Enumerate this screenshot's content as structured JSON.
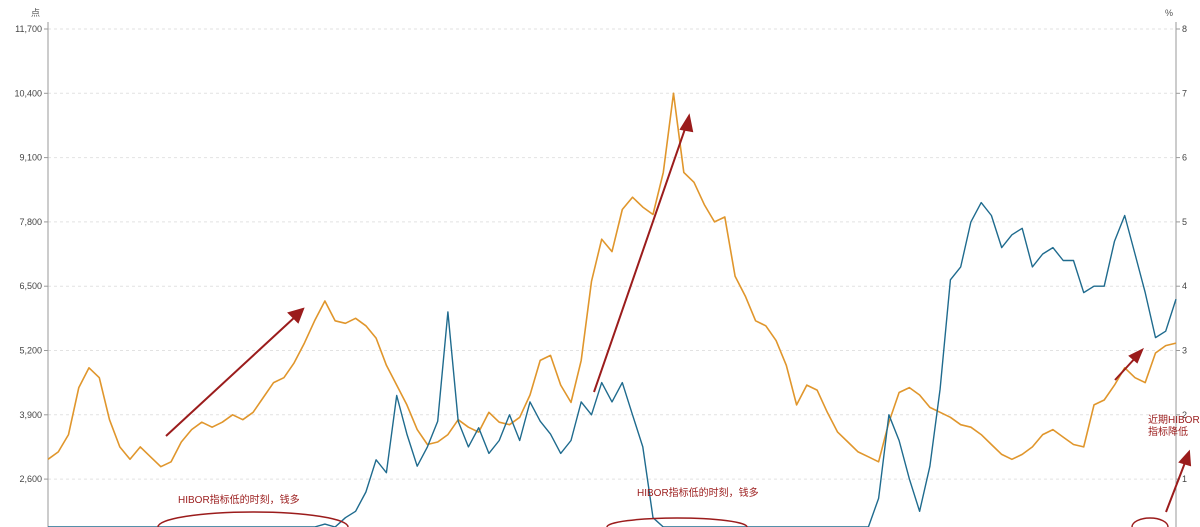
{
  "chart_data": {
    "type": "line",
    "left_axis": {
      "unit": "点",
      "ylim": [
        1300,
        11700
      ],
      "ticks": [
        11700,
        10400,
        9100,
        7800,
        6500,
        5200,
        3900,
        2600
      ],
      "tick_labels": [
        "11,700",
        "10,400",
        "9,100",
        "7,800",
        "6,500",
        "5,200",
        "3,900",
        "2,600"
      ]
    },
    "right_axis": {
      "unit": "%",
      "ylim": [
        -1,
        8
      ],
      "ticks": [
        8,
        7,
        6,
        5,
        4,
        3,
        2,
        1
      ],
      "tick_labels": [
        "8",
        "7",
        "6",
        "5",
        "4",
        "3",
        "2",
        "1"
      ]
    },
    "grid": true,
    "series": [
      {
        "color": "#e0962c",
        "axis": "left",
        "values": [
          3000,
          3150,
          3500,
          4450,
          4850,
          4650,
          3800,
          3250,
          3000,
          3250,
          3050,
          2850,
          2950,
          3350,
          3600,
          3750,
          3650,
          3750,
          3900,
          3800,
          3950,
          4250,
          4550,
          4650,
          4950,
          5350,
          5800,
          6200,
          5800,
          5750,
          5850,
          5700,
          5450,
          4900,
          4500,
          4100,
          3600,
          3300,
          3350,
          3500,
          3800,
          3650,
          3550,
          3950,
          3750,
          3700,
          3850,
          4300,
          5000,
          5100,
          4500,
          4150,
          5000,
          6600,
          7450,
          7200,
          8050,
          8300,
          8100,
          7950,
          8800,
          10400,
          8800,
          8600,
          8150,
          7800,
          7900,
          6700,
          6300,
          5800,
          5700,
          5400,
          4900,
          4100,
          4500,
          4400,
          3950,
          3550,
          3350,
          3150,
          3050,
          2950,
          3750,
          4350,
          4450,
          4300,
          4050,
          3950,
          3850,
          3700,
          3650,
          3500,
          3300,
          3100,
          3000,
          3100,
          3250,
          3500,
          3600,
          3450,
          3300,
          3250,
          4100,
          4200,
          4500,
          4850,
          4650,
          4550,
          5150,
          5300,
          5350
        ]
      },
      {
        "color": "#1f6b8e",
        "axis": "right",
        "values": [
          -1,
          -1,
          -1,
          -1,
          -1,
          -1,
          -1,
          -1,
          -1,
          -1,
          -1,
          -1,
          -1,
          -1,
          -1,
          -1,
          -1,
          -1,
          -0.6,
          -0.6,
          -0.7,
          -0.8,
          -0.8,
          -0.8,
          -0.8,
          -0.7,
          0.2,
          0.3,
          0.1,
          0.4,
          0.5,
          0.8,
          1.3,
          1.1,
          2.3,
          1.7,
          1.2,
          1.5,
          1.9,
          3.6,
          1.9,
          1.5,
          1.8,
          1.4,
          1.6,
          2.0,
          1.6,
          2.2,
          1.9,
          1.7,
          1.4,
          1.6,
          2.2,
          2.0,
          2.5,
          2.2,
          2.5,
          2.0,
          1.5,
          0.4,
          0.1,
          -1,
          -1,
          -1,
          -1,
          -1,
          -1,
          -1,
          -1,
          -0.8,
          -0.8,
          -0.8,
          -0.8,
          -0.8,
          -0.8,
          -0.8,
          -0.7,
          -0.8,
          -0.9,
          -1,
          -0.5,
          0.7,
          2.0,
          1.6,
          1.0,
          0.5,
          1.2,
          2.4,
          4.1,
          4.3,
          5.0,
          5.3,
          5.1,
          4.6,
          4.8,
          4.9,
          4.3,
          4.5,
          4.6,
          4.4,
          4.4,
          3.9,
          4.0,
          4.0,
          4.7,
          5.1,
          4.5,
          3.9,
          3.2,
          3.3,
          3.8
        ]
      }
    ],
    "annotations": [
      "HIBOR指标低的时刻，钱多",
      "HIBOR指标低的时刻，钱多",
      "近期HIBOR",
      "指标降低"
    ]
  }
}
